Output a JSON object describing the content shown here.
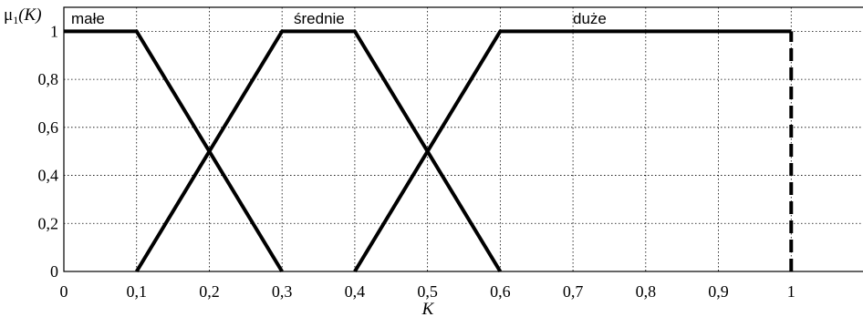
{
  "chart_data": {
    "type": "line",
    "ylabel": "μ1(K)",
    "ylabel_main": "μ",
    "ylabel_sub": "1",
    "ylabel_arg": "(K)",
    "xlabel": "K",
    "xlim": [
      0,
      1.1
    ],
    "ylim": [
      0,
      1.1
    ],
    "grid": true,
    "x_ticks": [
      "0",
      "0,1",
      "0,2",
      "0,3",
      "0,4",
      "0,5",
      "0,6",
      "0,7",
      "0,8",
      "0,9",
      "1"
    ],
    "y_ticks": [
      "0",
      "0,2",
      "0,4",
      "0,6",
      "0,8",
      "1"
    ],
    "series": [
      {
        "name": "małe",
        "x": [
          0,
          0.1,
          0.3
        ],
        "y": [
          1,
          1,
          0
        ]
      },
      {
        "name": "średnie",
        "x": [
          0.1,
          0.3,
          0.4,
          0.6
        ],
        "y": [
          0,
          1,
          1,
          0
        ]
      },
      {
        "name": "duże",
        "x": [
          0.4,
          0.6,
          1.0
        ],
        "y": [
          0,
          1,
          1
        ]
      }
    ],
    "vertical_dashed_line": {
      "x": 1.0,
      "y": [
        0,
        1
      ]
    }
  }
}
